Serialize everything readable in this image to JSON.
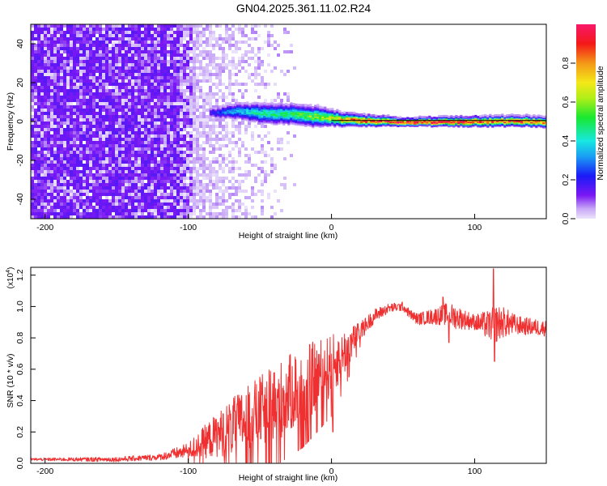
{
  "title": "GN04.2025.361.11.02.R24",
  "colors": {
    "signal_line": "#f03030",
    "axis": "#000000",
    "heat_low": "#dccbf8",
    "heat_mid": "#7f20f4",
    "heat_high": "#f8233c"
  },
  "chart_data": [
    {
      "type": "heatmap",
      "name": "spectrogram",
      "xlabel": "Height of straight line (km)",
      "ylabel": "Frequency (Hz)",
      "xlim": [
        -210,
        150
      ],
      "ylim": [
        -50,
        50
      ],
      "x_ticks": [
        {
          "value": -200,
          "label": "-200"
        },
        {
          "value": -100,
          "label": "-100"
        },
        {
          "value": 0,
          "label": "0"
        },
        {
          "value": 100,
          "label": "100"
        }
      ],
      "y_ticks": [
        {
          "value": -40,
          "label": "-40"
        },
        {
          "value": -20,
          "label": "-20"
        },
        {
          "value": 0,
          "label": "0"
        },
        {
          "value": 20,
          "label": "20"
        },
        {
          "value": 40,
          "label": "40"
        }
      ],
      "noise_region_x": [
        -210,
        -25
      ],
      "signal_track": {
        "x": [
          -85,
          -70,
          -50,
          -30,
          -10,
          0,
          10,
          30,
          50,
          80,
          110,
          130,
          150
        ],
        "freq": [
          5,
          6,
          5,
          4.5,
          3,
          2.5,
          1.5,
          1,
          0.5,
          0.5,
          0.8,
          1,
          0.5
        ],
        "half_width": [
          2,
          3,
          4,
          4,
          4,
          3,
          2.5,
          2,
          1.5,
          1.8,
          2,
          2,
          2
        ],
        "amplitude": [
          0.2,
          0.35,
          0.45,
          0.5,
          0.6,
          0.7,
          0.8,
          0.95,
          1,
          1,
          0.9,
          0.9,
          0.85
        ]
      },
      "colorbar": {
        "label": "Normalized spectral amplitude",
        "range": [
          0,
          1
        ],
        "ticks": [
          {
            "value": 0.0,
            "label": "0.0"
          },
          {
            "value": 0.2,
            "label": "0.2"
          },
          {
            "value": 0.4,
            "label": "0.4"
          },
          {
            "value": 0.6,
            "label": "0.6"
          },
          {
            "value": 0.8,
            "label": "0.8"
          }
        ]
      }
    },
    {
      "type": "line",
      "name": "snr",
      "xlabel": "Height of straight line (km)",
      "ylabel": "SNR (10 * v/v)",
      "multiplier_label": "(x10",
      "multiplier_exp": "4",
      "multiplier_close": ")",
      "xlim": [
        -210,
        150
      ],
      "ylim": [
        0,
        1.25
      ],
      "x_ticks": [
        {
          "value": -200,
          "label": "-200"
        },
        {
          "value": -100,
          "label": "-100"
        },
        {
          "value": 0,
          "label": "0"
        },
        {
          "value": 100,
          "label": "100"
        }
      ],
      "y_ticks": [
        {
          "value": 0.0,
          "label": "0.0"
        },
        {
          "value": 0.2,
          "label": "0.2"
        },
        {
          "value": 0.4,
          "label": "0.4"
        },
        {
          "value": 0.6,
          "label": "0.6"
        },
        {
          "value": 0.8,
          "label": "0.8"
        },
        {
          "value": 1.0,
          "label": "1.0"
        },
        {
          "value": 1.2,
          "label": "1.2"
        }
      ],
      "trend": {
        "x": [
          -210,
          -150,
          -120,
          -100,
          -80,
          -60,
          -40,
          -20,
          0,
          10,
          20,
          30,
          40,
          50,
          55,
          60,
          80,
          100,
          110,
          120,
          130,
          140,
          150
        ],
        "y": [
          0.025,
          0.025,
          0.04,
          0.08,
          0.18,
          0.28,
          0.38,
          0.5,
          0.62,
          0.72,
          0.84,
          0.94,
          0.99,
          1.0,
          0.95,
          0.92,
          0.95,
          0.9,
          0.88,
          0.9,
          0.88,
          0.87,
          0.86
        ]
      },
      "spread": {
        "x": [
          -210,
          -120,
          -100,
          -90,
          -70,
          -40,
          -20,
          0,
          10,
          20,
          40,
          55,
          70,
          85,
          100,
          115,
          130,
          150
        ],
        "amp": [
          0.008,
          0.02,
          0.05,
          0.1,
          0.18,
          0.25,
          0.25,
          0.2,
          0.14,
          0.06,
          0.03,
          0.03,
          0.05,
          0.08,
          0.05,
          0.12,
          0.06,
          0.05
        ]
      },
      "spikes": [
        {
          "x": 113,
          "y": 1.24
        },
        {
          "x": 114,
          "y": 0.65
        },
        {
          "x": 1,
          "y": 0.2
        },
        {
          "x": 78,
          "y": 1.06
        },
        {
          "x": 82,
          "y": 0.77
        }
      ]
    }
  ]
}
